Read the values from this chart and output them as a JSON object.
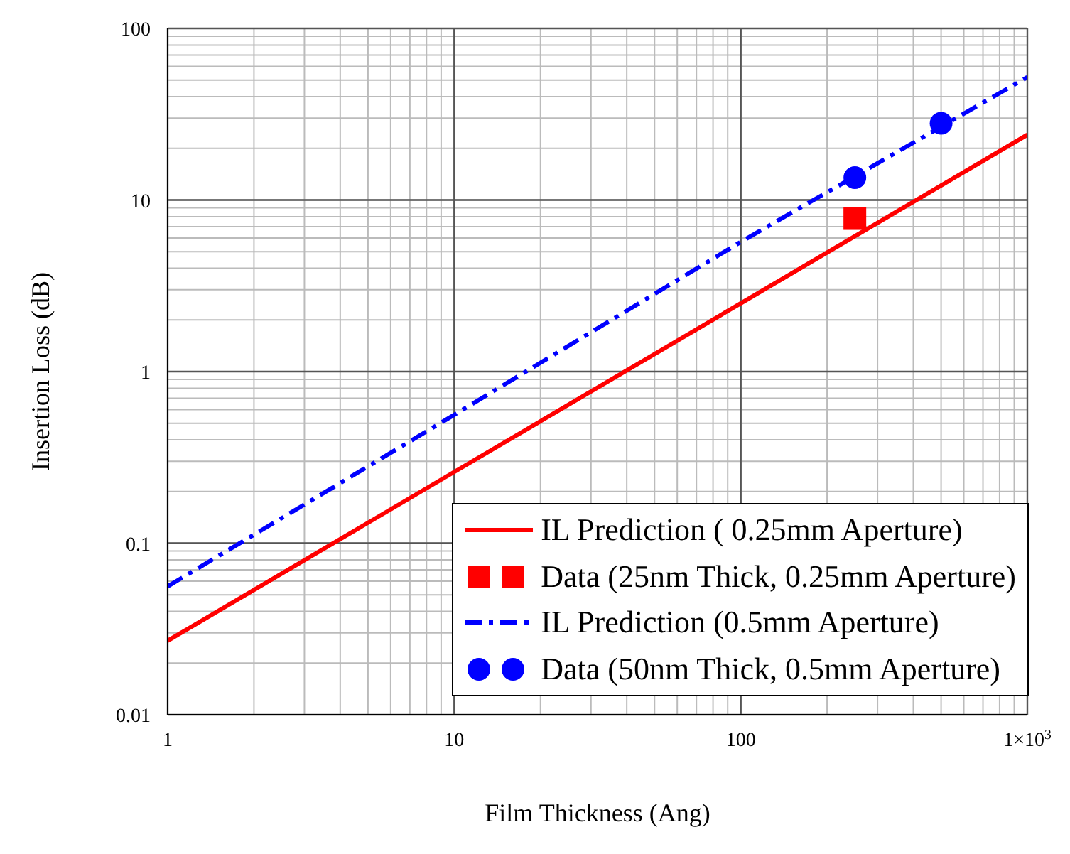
{
  "chart_data": {
    "type": "line",
    "xlabel": "Film Thickness (Ang)",
    "ylabel": "Insertion Loss (dB)",
    "log": "xy",
    "xlim": [
      1,
      1000
    ],
    "ylim": [
      0.01,
      100
    ],
    "xticks": [
      1,
      10,
      100,
      {
        "value": 1000,
        "label": "1×10$^{3}$"
      }
    ],
    "yticks": [
      0.01,
      0.1,
      1,
      10,
      100
    ],
    "grid": true,
    "legend": "bottom right",
    "series": [
      {
        "name": "IL Prediction ( 0.25mm Aperture)",
        "color": "#ff0000",
        "line_style": "solid",
        "marker": "none",
        "x": [
          1,
          10,
          100,
          1000
        ],
        "values": [
          0.027,
          0.26,
          2.5,
          24
        ]
      },
      {
        "name": "Data (25nm Thick, 0.25mm Aperture)",
        "type": "scatter",
        "color": "#ff0000",
        "marker": "square",
        "x": [
          250
        ],
        "values": [
          7.8
        ]
      },
      {
        "name": "IL Prediction (0.5mm Aperture)",
        "color": "#0000ff",
        "line_style": "dashed",
        "marker": "none",
        "x": [
          1,
          10,
          100,
          1000
        ],
        "values": [
          0.056,
          0.56,
          5.7,
          52
        ]
      },
      {
        "name": "Data (50nm Thick, 0.5mm Aperture)",
        "type": "scatter",
        "color": "#0000ff",
        "marker": "circle",
        "x": [
          250,
          500
        ],
        "values": [
          13.5,
          28
        ]
      }
    ]
  }
}
